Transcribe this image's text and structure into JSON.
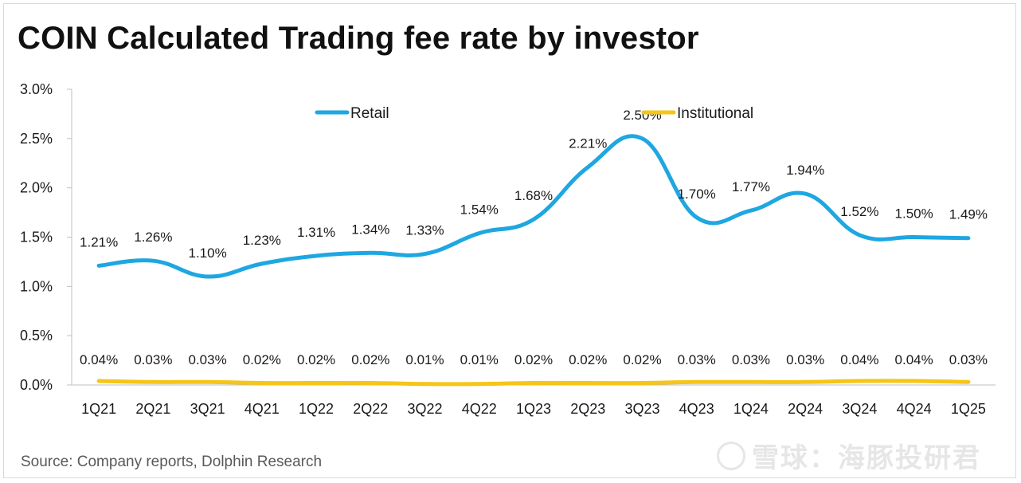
{
  "title": "COIN Calculated Trading fee rate by investor",
  "source": "Source: Company reports, Dolphin Research",
  "watermark_text": "雪球：海豚投研君",
  "chart_data": {
    "type": "line",
    "title": "COIN Calculated Trading fee rate by investor",
    "xlabel": "",
    "ylabel": "",
    "categories": [
      "1Q21",
      "2Q21",
      "3Q21",
      "4Q21",
      "1Q22",
      "2Q22",
      "3Q22",
      "4Q22",
      "1Q23",
      "2Q23",
      "3Q23",
      "4Q23",
      "1Q24",
      "2Q24",
      "3Q24",
      "4Q24",
      "1Q25"
    ],
    "ylim": [
      0,
      3.0
    ],
    "yticks": [
      0,
      0.5,
      1.0,
      1.5,
      2.0,
      2.5,
      3.0
    ],
    "ytick_labels": [
      "0.0%",
      "0.5%",
      "1.0%",
      "1.5%",
      "2.0%",
      "2.5%",
      "3.0%"
    ],
    "grid": false,
    "legend_position": "top",
    "series": [
      {
        "name": "Retail",
        "color": "#1ea7e1",
        "values": [
          1.21,
          1.26,
          1.1,
          1.23,
          1.31,
          1.34,
          1.33,
          1.54,
          1.68,
          2.21,
          2.5,
          1.7,
          1.77,
          1.94,
          1.52,
          1.5,
          1.49
        ],
        "labels": [
          "1.21%",
          "1.26%",
          "1.10%",
          "1.23%",
          "1.31%",
          "1.34%",
          "1.33%",
          "1.54%",
          "1.68%",
          "2.21%",
          "2.50%",
          "1.70%",
          "1.77%",
          "1.94%",
          "1.52%",
          "1.50%",
          "1.49%"
        ]
      },
      {
        "name": "Institutional",
        "color": "#f5c518",
        "values": [
          0.04,
          0.03,
          0.03,
          0.02,
          0.02,
          0.02,
          0.01,
          0.01,
          0.02,
          0.02,
          0.02,
          0.03,
          0.03,
          0.03,
          0.04,
          0.04,
          0.03
        ],
        "labels": [
          "0.04%",
          "0.03%",
          "0.03%",
          "0.02%",
          "0.02%",
          "0.02%",
          "0.01%",
          "0.01%",
          "0.02%",
          "0.02%",
          "0.02%",
          "0.03%",
          "0.03%",
          "0.03%",
          "0.04%",
          "0.04%",
          "0.03%"
        ]
      }
    ]
  }
}
